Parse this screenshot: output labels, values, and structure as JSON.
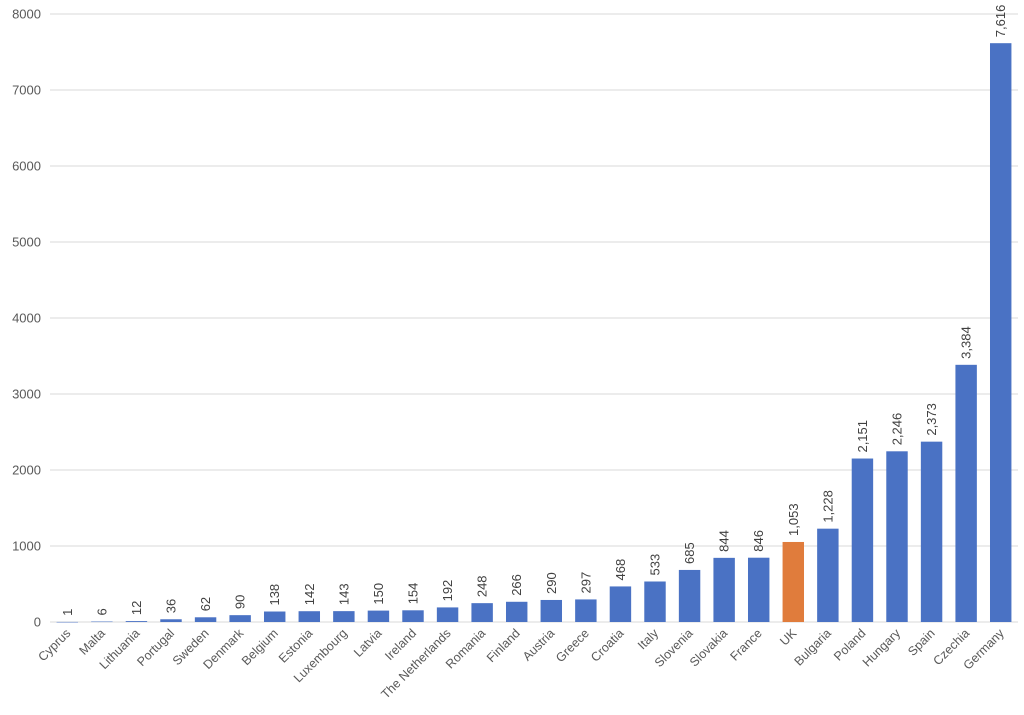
{
  "chart_data": {
    "type": "bar",
    "title": "",
    "xlabel": "",
    "ylabel": "",
    "ylim": [
      0,
      8000
    ],
    "yticks": [
      0,
      1000,
      2000,
      3000,
      4000,
      5000,
      6000,
      7000,
      8000
    ],
    "yticks_text": [
      "0",
      "1000",
      "2000",
      "3000",
      "4000",
      "5000",
      "6000",
      "7000",
      "8000"
    ],
    "grid": true,
    "legend": "none",
    "default_color": "#4a72c4",
    "highlight_color": "#e07c3c",
    "highlight_category": "UK",
    "categories": [
      "Cyprus",
      "Malta",
      "Lithuania",
      "Portugal",
      "Sweden",
      "Denmark",
      "Belgium",
      "Estonia",
      "Luxembourg",
      "Latvia",
      "Ireland",
      "The Netherlands",
      "Romania",
      "Finland",
      "Austria",
      "Greece",
      "Croatia",
      "Italy",
      "Slovenia",
      "Slovakia",
      "France",
      "UK",
      "Bulgaria",
      "Poland",
      "Hungary",
      "Spain",
      "Czechia",
      "Germany"
    ],
    "values": [
      1,
      6,
      12,
      36,
      62,
      90,
      138,
      142,
      143,
      150,
      154,
      192,
      248,
      266,
      290,
      297,
      468,
      533,
      685,
      844,
      846,
      1053,
      1228,
      2151,
      2246,
      2373,
      3384,
      7616
    ],
    "data_labels": [
      "1",
      "6",
      "12",
      "36",
      "62",
      "90",
      "138",
      "142",
      "143",
      "150",
      "154",
      "192",
      "248",
      "266",
      "290",
      "297",
      "468",
      "533",
      "685",
      "844",
      "846",
      "1,053",
      "1,228",
      "2,151",
      "2,246",
      "2,373",
      "3,384",
      "7,616"
    ]
  }
}
